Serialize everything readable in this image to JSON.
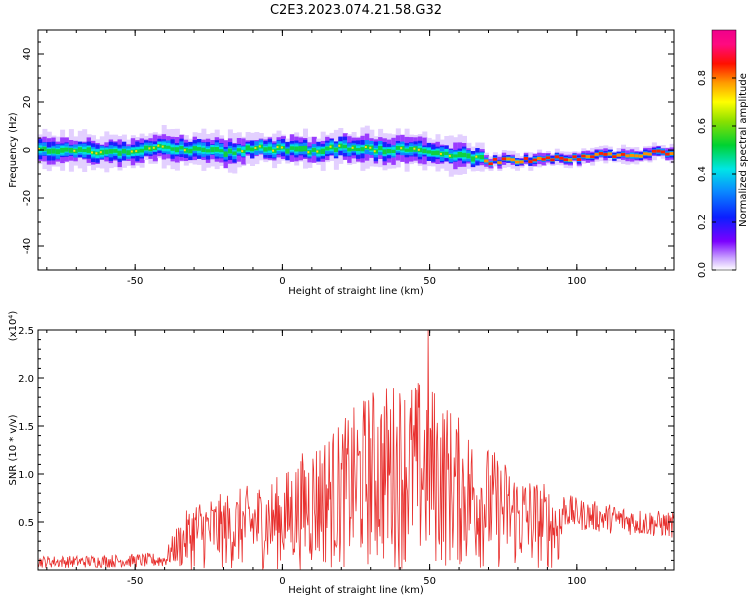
{
  "title": "C2E3.2023.074.21.58.G32",
  "chart_data": [
    {
      "type": "heatmap",
      "xlabel": "Height of straight line (km)",
      "ylabel": "Frequency (Hz)",
      "xlim": [
        -83,
        133
      ],
      "ylim": [
        -50,
        50
      ],
      "xticks": [
        -50,
        0,
        50,
        100
      ],
      "yticks": [
        -40,
        -20,
        0,
        20,
        40
      ],
      "colorbar": {
        "label": "Normalized spectral amplitude",
        "range": [
          0.0,
          1.0
        ],
        "ticks": [
          "0.0",
          "0.2",
          "0.4",
          "0.6",
          "0.8"
        ]
      },
      "ridge": {
        "x": [
          -80,
          -70,
          -60,
          -50,
          -40,
          -30,
          -20,
          -10,
          0,
          10,
          20,
          30,
          40,
          50,
          60,
          65,
          70,
          80,
          90,
          100,
          110,
          120,
          130
        ],
        "y": [
          0,
          0,
          -1,
          0,
          1,
          0,
          -1,
          1,
          0,
          0,
          1,
          0,
          0,
          -1,
          -2,
          -3,
          -5,
          -4,
          -4,
          -3,
          -2,
          -2,
          -1
        ]
      }
    },
    {
      "type": "line",
      "xlabel": "Height of straight line (km)",
      "ylabel": "SNR (10 * v/v)",
      "y_multiplier": "(x10⁴)",
      "xlim": [
        -83,
        133
      ],
      "ylim": [
        0,
        2.5
      ],
      "xticks": [
        -50,
        0,
        50,
        100
      ],
      "yticks": [
        "0.5",
        "1.0",
        "1.5",
        "2.0",
        "2.5"
      ],
      "envelope": {
        "x": [
          -83,
          -70,
          -50,
          -40,
          -36,
          -30,
          -20,
          -10,
          0,
          10,
          20,
          30,
          40,
          50,
          60,
          70,
          80,
          90,
          100,
          110,
          120,
          133
        ],
        "y": [
          0.15,
          0.15,
          0.17,
          0.18,
          0.45,
          0.75,
          0.8,
          0.9,
          1.0,
          1.35,
          1.55,
          1.9,
          2.0,
          2.0,
          1.6,
          1.3,
          1.05,
          0.9,
          0.75,
          0.7,
          0.65,
          0.6
        ]
      },
      "peak": {
        "x": 49.5,
        "y": 2.5
      },
      "color": "#e8302e"
    }
  ]
}
